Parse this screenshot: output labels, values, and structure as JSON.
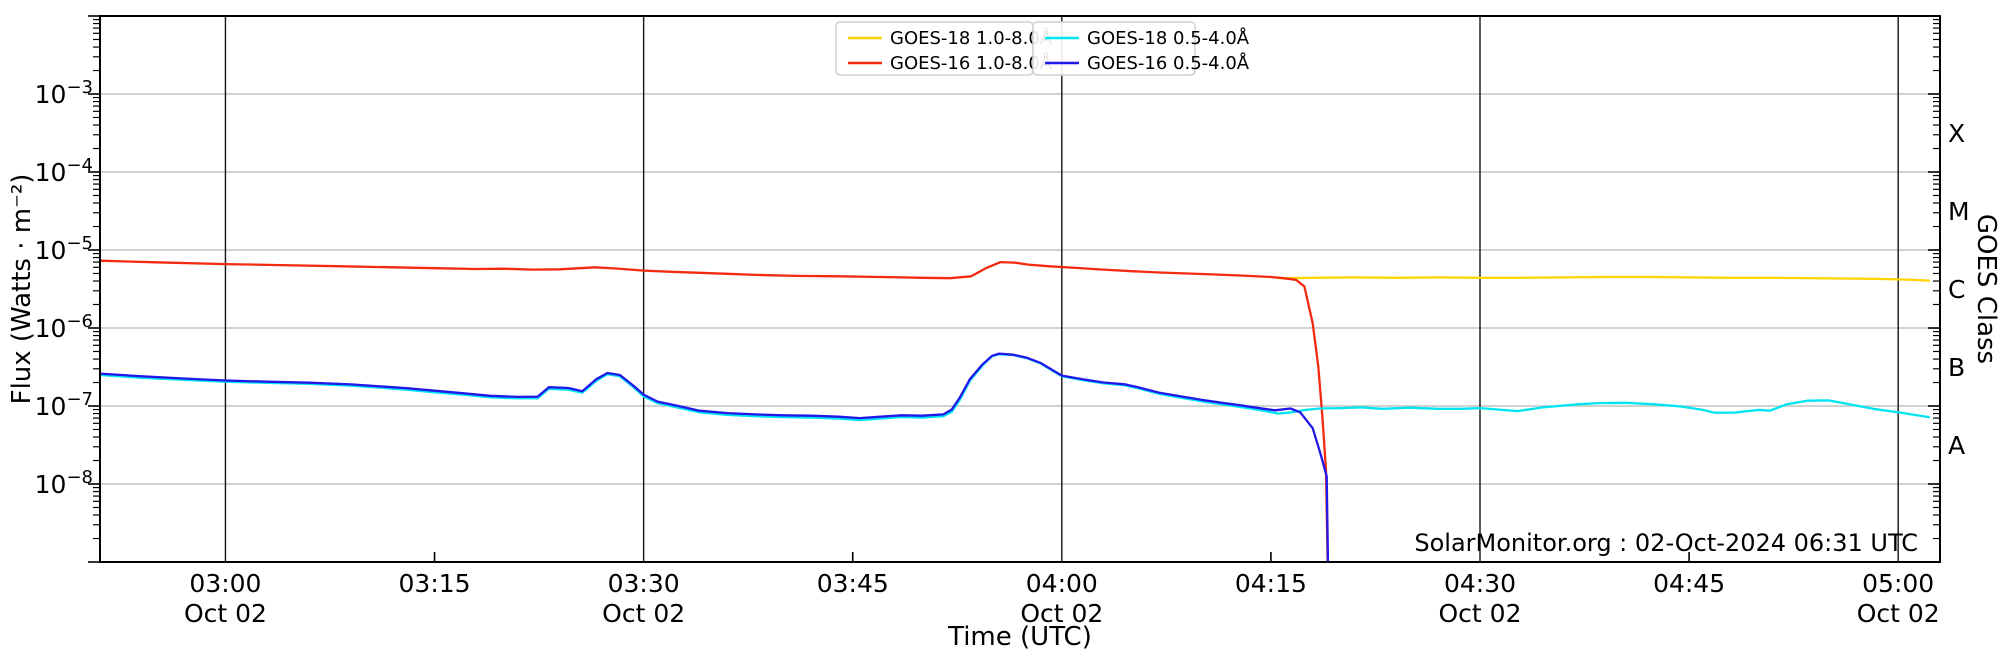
{
  "chart_data": {
    "type": "line",
    "title": "",
    "xlabel": "Time (UTC)",
    "ylabel": "Flux (Watts · m⁻²)",
    "ylabel_right": "GOES Class",
    "footer": "SolarMonitor.org : 02-Oct-2024 06:31 UTC",
    "grid": "on",
    "legend_position": "top-center",
    "x_unit": "minutes after 03:00 UTC, 02 Oct 2024",
    "x_domain_minutes": [
      -9,
      123
    ],
    "ylim": [
      1e-09,
      0.01
    ],
    "y_tick_exponents": [
      -3,
      -4,
      -5,
      -6,
      -7,
      -8
    ],
    "x_ticks": [
      {
        "minute": 0,
        "label": "03:00",
        "date": "Oct 02",
        "grid": true
      },
      {
        "minute": 15,
        "label": "03:15",
        "date": "",
        "grid": false
      },
      {
        "minute": 30,
        "label": "03:30",
        "date": "Oct 02",
        "grid": true
      },
      {
        "minute": 45,
        "label": "03:45",
        "date": "",
        "grid": false
      },
      {
        "minute": 60,
        "label": "04:00",
        "date": "Oct 02",
        "grid": true
      },
      {
        "minute": 75,
        "label": "04:15",
        "date": "",
        "grid": false
      },
      {
        "minute": 90,
        "label": "04:30",
        "date": "Oct 02",
        "grid": true
      },
      {
        "minute": 105,
        "label": "04:45",
        "date": "",
        "grid": false
      },
      {
        "minute": 120,
        "label": "05:00",
        "date": "Oct 02",
        "grid": true
      }
    ],
    "goes_class_labels": [
      {
        "label": "X",
        "mid_exponent": -3.5
      },
      {
        "label": "M",
        "mid_exponent": -4.5
      },
      {
        "label": "C",
        "mid_exponent": -5.5
      },
      {
        "label": "B",
        "mid_exponent": -6.5
      },
      {
        "label": "A",
        "mid_exponent": -7.5
      }
    ],
    "colors": {
      "goes18_long": "#ffd400",
      "goes16_long": "#f32a10",
      "goes18_short": "#00e5f2",
      "goes16_short": "#2017e8",
      "grid_minor_gray": "#b8b8b8",
      "grid_major_dark": "#141414",
      "spine": "#000000",
      "legend_border": "#d0d0d0",
      "background": "#ffffff"
    },
    "legend_boxes": [
      {
        "entries": [
          {
            "label": "GOES-18 1.0-8.0Å",
            "color_key": "goes18_long"
          },
          {
            "label": "GOES-16 1.0-8.0Å",
            "color_key": "goes16_long"
          }
        ]
      },
      {
        "entries": [
          {
            "label": "GOES-18 0.5-4.0Å",
            "color_key": "goes18_short"
          },
          {
            "label": "GOES-16 0.5-4.0Å",
            "color_key": "goes16_short"
          }
        ]
      }
    ],
    "series": [
      {
        "name": "GOES-18 1.0-8.0Å",
        "color_key": "goes18_long",
        "points": [
          [
            75.6,
            4.35e-06
          ],
          [
            78,
            4.4e-06
          ],
          [
            81,
            4.45e-06
          ],
          [
            84,
            4.4e-06
          ],
          [
            87,
            4.45e-06
          ],
          [
            90,
            4.4e-06
          ],
          [
            93,
            4.4e-06
          ],
          [
            96,
            4.45e-06
          ],
          [
            99,
            4.5e-06
          ],
          [
            102,
            4.5e-06
          ],
          [
            105,
            4.45e-06
          ],
          [
            108,
            4.4e-06
          ],
          [
            111,
            4.4e-06
          ],
          [
            114,
            4.35e-06
          ],
          [
            117,
            4.3e-06
          ],
          [
            119,
            4.25e-06
          ],
          [
            121,
            4.15e-06
          ],
          [
            122.2,
            4.05e-06
          ]
        ]
      },
      {
        "name": "GOES-16 1.0-8.0Å",
        "color_key": "goes16_long",
        "points": [
          [
            -9,
            7.3e-06
          ],
          [
            -5,
            6.95e-06
          ],
          [
            0,
            6.6e-06
          ],
          [
            4,
            6.4e-06
          ],
          [
            8,
            6.2e-06
          ],
          [
            12,
            6e-06
          ],
          [
            15,
            5.85e-06
          ],
          [
            18,
            5.7e-06
          ],
          [
            20,
            5.75e-06
          ],
          [
            22,
            5.6e-06
          ],
          [
            24,
            5.65e-06
          ],
          [
            26.5,
            6e-06
          ],
          [
            28,
            5.8e-06
          ],
          [
            30,
            5.45e-06
          ],
          [
            32,
            5.25e-06
          ],
          [
            34,
            5.1e-06
          ],
          [
            36,
            4.95e-06
          ],
          [
            38,
            4.8e-06
          ],
          [
            41,
            4.65e-06
          ],
          [
            44,
            4.6e-06
          ],
          [
            47,
            4.5e-06
          ],
          [
            50,
            4.4e-06
          ],
          [
            52,
            4.35e-06
          ],
          [
            53.5,
            4.6e-06
          ],
          [
            54.6,
            5.9e-06
          ],
          [
            55.6,
            7e-06
          ],
          [
            56.6,
            6.9e-06
          ],
          [
            57.6,
            6.5e-06
          ],
          [
            59,
            6.2e-06
          ],
          [
            61,
            5.9e-06
          ],
          [
            63,
            5.6e-06
          ],
          [
            65,
            5.35e-06
          ],
          [
            67,
            5.15e-06
          ],
          [
            69,
            5e-06
          ],
          [
            71,
            4.85e-06
          ],
          [
            73,
            4.7e-06
          ],
          [
            75,
            4.5e-06
          ],
          [
            75.9,
            4.35e-06
          ],
          [
            76.8,
            4.15e-06
          ],
          [
            77.4,
            3.4e-06
          ],
          [
            78.0,
            1.15e-06
          ],
          [
            78.4,
            3.2e-07
          ],
          [
            78.7,
            7e-08
          ],
          [
            78.95,
            1.5e-08
          ],
          [
            79.1,
            5e-10
          ]
        ]
      },
      {
        "name": "GOES-18 0.5-4.0Å",
        "color_key": "goes18_short",
        "points": [
          [
            -9,
            2.5e-07
          ],
          [
            -6,
            2.3e-07
          ],
          [
            -3,
            2.16e-07
          ],
          [
            0,
            2.05e-07
          ],
          [
            3,
            1.98e-07
          ],
          [
            6,
            1.92e-07
          ],
          [
            9,
            1.82e-07
          ],
          [
            11,
            1.72e-07
          ],
          [
            13,
            1.62e-07
          ],
          [
            15,
            1.5e-07
          ],
          [
            17,
            1.4e-07
          ],
          [
            19,
            1.29e-07
          ],
          [
            21,
            1.25e-07
          ],
          [
            22.4,
            1.26e-07
          ],
          [
            23.2,
            1.66e-07
          ],
          [
            24.6,
            1.62e-07
          ],
          [
            25.6,
            1.48e-07
          ],
          [
            26.6,
            2.1e-07
          ],
          [
            27.4,
            2.55e-07
          ],
          [
            28.3,
            2.4e-07
          ],
          [
            29.3,
            1.72e-07
          ],
          [
            30,
            1.33e-07
          ],
          [
            31,
            1.09e-07
          ],
          [
            32.5,
            9.5e-08
          ],
          [
            34,
            8.3e-08
          ],
          [
            36,
            7.7e-08
          ],
          [
            38,
            7.4e-08
          ],
          [
            40,
            7.2e-08
          ],
          [
            42,
            7.1e-08
          ],
          [
            44,
            6.9e-08
          ],
          [
            45.5,
            6.6e-08
          ],
          [
            47,
            6.9e-08
          ],
          [
            48.5,
            7.2e-08
          ],
          [
            50,
            7.1e-08
          ],
          [
            51.5,
            7.4e-08
          ],
          [
            52.1,
            8.4e-08
          ],
          [
            52.7,
            1.22e-07
          ],
          [
            53.4,
            2.1e-07
          ],
          [
            54.3,
            3.3e-07
          ],
          [
            55.0,
            4.35e-07
          ],
          [
            55.5,
            4.6e-07
          ],
          [
            56.5,
            4.5e-07
          ],
          [
            57.5,
            4.1e-07
          ],
          [
            58.5,
            3.5e-07
          ],
          [
            60,
            2.4e-07
          ],
          [
            61.5,
            2.15e-07
          ],
          [
            63,
            1.95e-07
          ],
          [
            64.5,
            1.85e-07
          ],
          [
            65.5,
            1.68e-07
          ],
          [
            67,
            1.43e-07
          ],
          [
            68.5,
            1.28e-07
          ],
          [
            70,
            1.15e-07
          ],
          [
            71.5,
            1.05e-07
          ],
          [
            73,
            9.6e-08
          ],
          [
            74.5,
            8.7e-08
          ],
          [
            75.5,
            8e-08
          ],
          [
            76.5,
            8.3e-08
          ],
          [
            77.5,
            8.9e-08
          ],
          [
            78.5,
            9.3e-08
          ],
          [
            80,
            9.4e-08
          ],
          [
            81.5,
            9.6e-08
          ],
          [
            83,
            9.2e-08
          ],
          [
            85,
            9.5e-08
          ],
          [
            87,
            9.2e-08
          ],
          [
            88.6,
            9.2e-08
          ],
          [
            90,
            9.4e-08
          ],
          [
            92.7,
            8.6e-08
          ],
          [
            94.5,
            9.6e-08
          ],
          [
            97,
            1.05e-07
          ],
          [
            98.5,
            1.09e-07
          ],
          [
            100.5,
            1.1e-07
          ],
          [
            102.5,
            1.05e-07
          ],
          [
            104.3,
            9.9e-08
          ],
          [
            106,
            8.9e-08
          ],
          [
            106.8,
            8.2e-08
          ],
          [
            108.2,
            8.2e-08
          ],
          [
            110,
            8.9e-08
          ],
          [
            110.8,
            8.7e-08
          ],
          [
            112,
            1.05e-07
          ],
          [
            113.5,
            1.17e-07
          ],
          [
            115,
            1.18e-07
          ],
          [
            116.4,
            1.06e-07
          ],
          [
            118.2,
            9.2e-08
          ],
          [
            120,
            8.3e-08
          ],
          [
            122.2,
            7.2e-08
          ]
        ]
      },
      {
        "name": "GOES-16 0.5-4.0Å",
        "color_key": "goes16_short",
        "points": [
          [
            -9,
            2.6e-07
          ],
          [
            -6,
            2.4e-07
          ],
          [
            -3,
            2.25e-07
          ],
          [
            0,
            2.12e-07
          ],
          [
            3,
            2.05e-07
          ],
          [
            6,
            1.99e-07
          ],
          [
            9,
            1.89e-07
          ],
          [
            11,
            1.79e-07
          ],
          [
            13,
            1.69e-07
          ],
          [
            15,
            1.57e-07
          ],
          [
            17,
            1.46e-07
          ],
          [
            19,
            1.35e-07
          ],
          [
            21,
            1.31e-07
          ],
          [
            22.4,
            1.32e-07
          ],
          [
            23.2,
            1.74e-07
          ],
          [
            24.6,
            1.7e-07
          ],
          [
            25.6,
            1.55e-07
          ],
          [
            26.6,
            2.2e-07
          ],
          [
            27.4,
            2.65e-07
          ],
          [
            28.3,
            2.5e-07
          ],
          [
            29.3,
            1.8e-07
          ],
          [
            30,
            1.4e-07
          ],
          [
            31,
            1.14e-07
          ],
          [
            32.5,
            1e-07
          ],
          [
            34,
            8.7e-08
          ],
          [
            36,
            8.1e-08
          ],
          [
            38,
            7.8e-08
          ],
          [
            40,
            7.6e-08
          ],
          [
            42,
            7.5e-08
          ],
          [
            44,
            7.3e-08
          ],
          [
            45.5,
            7e-08
          ],
          [
            47,
            7.3e-08
          ],
          [
            48.5,
            7.6e-08
          ],
          [
            50,
            7.5e-08
          ],
          [
            51.5,
            7.8e-08
          ],
          [
            52.1,
            9e-08
          ],
          [
            52.7,
            1.3e-07
          ],
          [
            53.4,
            2.2e-07
          ],
          [
            54.3,
            3.4e-07
          ],
          [
            55.0,
            4.4e-07
          ],
          [
            55.5,
            4.7e-07
          ],
          [
            56.5,
            4.55e-07
          ],
          [
            57.5,
            4.15e-07
          ],
          [
            58.5,
            3.55e-07
          ],
          [
            60,
            2.45e-07
          ],
          [
            61.5,
            2.2e-07
          ],
          [
            63,
            2e-07
          ],
          [
            64.5,
            1.9e-07
          ],
          [
            65.5,
            1.73e-07
          ],
          [
            67,
            1.48e-07
          ],
          [
            68.5,
            1.33e-07
          ],
          [
            70,
            1.2e-07
          ],
          [
            71.5,
            1.1e-07
          ],
          [
            73,
            1.01e-07
          ],
          [
            74.5,
            9.2e-08
          ],
          [
            75.3,
            8.8e-08
          ],
          [
            76.4,
            9.3e-08
          ],
          [
            77.1,
            8.3e-08
          ],
          [
            78.0,
            5.2e-08
          ],
          [
            78.6,
            2.3e-08
          ],
          [
            79.0,
            1.25e-08
          ],
          [
            79.12,
            5e-10
          ]
        ]
      }
    ]
  }
}
